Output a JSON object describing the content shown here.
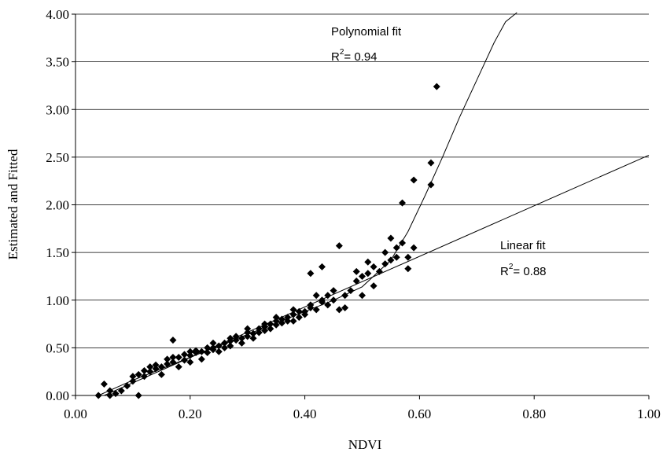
{
  "chart_data": {
    "type": "scatter",
    "xlabel": "NDVI",
    "ylabel": "Estimated and Fitted",
    "xlim": [
      0.0,
      1.0
    ],
    "ylim": [
      0.0,
      4.0
    ],
    "x_ticks": [
      "0.00",
      "0.20",
      "0.40",
      "0.60",
      "0.80",
      "1.00"
    ],
    "y_ticks": [
      "0.00",
      "0.50",
      "1.00",
      "1.50",
      "2.00",
      "2.50",
      "3.00",
      "3.50",
      "4.00"
    ],
    "grid": "horizontal",
    "marker": "diamond",
    "marker_color": "#000000",
    "points": [
      [
        0.04,
        0.0
      ],
      [
        0.05,
        0.12
      ],
      [
        0.06,
        0.0
      ],
      [
        0.06,
        0.05
      ],
      [
        0.07,
        0.02
      ],
      [
        0.08,
        0.05
      ],
      [
        0.09,
        0.1
      ],
      [
        0.1,
        0.15
      ],
      [
        0.11,
        0.0
      ],
      [
        0.11,
        0.22
      ],
      [
        0.12,
        0.2
      ],
      [
        0.12,
        0.26
      ],
      [
        0.13,
        0.25
      ],
      [
        0.13,
        0.3
      ],
      [
        0.14,
        0.28
      ],
      [
        0.15,
        0.3
      ],
      [
        0.15,
        0.22
      ],
      [
        0.16,
        0.33
      ],
      [
        0.16,
        0.38
      ],
      [
        0.17,
        0.58
      ],
      [
        0.17,
        0.35
      ],
      [
        0.18,
        0.4
      ],
      [
        0.18,
        0.3
      ],
      [
        0.19,
        0.37
      ],
      [
        0.19,
        0.43
      ],
      [
        0.2,
        0.42
      ],
      [
        0.2,
        0.35
      ],
      [
        0.21,
        0.45
      ],
      [
        0.21,
        0.47
      ],
      [
        0.22,
        0.46
      ],
      [
        0.22,
        0.38
      ],
      [
        0.23,
        0.5
      ],
      [
        0.23,
        0.45
      ],
      [
        0.24,
        0.5
      ],
      [
        0.24,
        0.48
      ],
      [
        0.25,
        0.52
      ],
      [
        0.25,
        0.46
      ],
      [
        0.26,
        0.55
      ],
      [
        0.26,
        0.5
      ],
      [
        0.27,
        0.57
      ],
      [
        0.27,
        0.52
      ],
      [
        0.28,
        0.58
      ],
      [
        0.28,
        0.62
      ],
      [
        0.29,
        0.6
      ],
      [
        0.29,
        0.55
      ],
      [
        0.3,
        0.62
      ],
      [
        0.3,
        0.66
      ],
      [
        0.31,
        0.65
      ],
      [
        0.31,
        0.6
      ],
      [
        0.32,
        0.7
      ],
      [
        0.32,
        0.66
      ],
      [
        0.33,
        0.72
      ],
      [
        0.33,
        0.68
      ],
      [
        0.34,
        0.75
      ],
      [
        0.34,
        0.7
      ],
      [
        0.35,
        0.78
      ],
      [
        0.35,
        0.74
      ],
      [
        0.36,
        0.8
      ],
      [
        0.36,
        0.76
      ],
      [
        0.37,
        0.82
      ],
      [
        0.37,
        0.78
      ],
      [
        0.38,
        0.85
      ],
      [
        0.38,
        0.78
      ],
      [
        0.39,
        0.88
      ],
      [
        0.39,
        0.82
      ],
      [
        0.4,
        0.88
      ],
      [
        0.4,
        0.85
      ],
      [
        0.41,
        0.92
      ],
      [
        0.41,
        0.95
      ],
      [
        0.42,
        1.05
      ],
      [
        0.42,
        0.9
      ],
      [
        0.43,
        0.98
      ],
      [
        0.43,
        1.0
      ],
      [
        0.44,
        1.05
      ],
      [
        0.44,
        0.95
      ],
      [
        0.45,
        1.1
      ],
      [
        0.45,
        1.0
      ],
      [
        0.46,
        1.57
      ],
      [
        0.46,
        0.9
      ],
      [
        0.47,
        0.92
      ],
      [
        0.47,
        1.05
      ],
      [
        0.48,
        1.1
      ],
      [
        0.49,
        1.3
      ],
      [
        0.49,
        1.2
      ],
      [
        0.5,
        1.25
      ],
      [
        0.5,
        1.05
      ],
      [
        0.51,
        1.28
      ],
      [
        0.51,
        1.4
      ],
      [
        0.52,
        1.35
      ],
      [
        0.52,
        1.15
      ],
      [
        0.53,
        1.3
      ],
      [
        0.54,
        1.5
      ],
      [
        0.54,
        1.38
      ],
      [
        0.55,
        1.65
      ],
      [
        0.55,
        1.42
      ],
      [
        0.56,
        1.55
      ],
      [
        0.56,
        1.45
      ],
      [
        0.57,
        1.6
      ],
      [
        0.57,
        2.02
      ],
      [
        0.58,
        1.33
      ],
      [
        0.58,
        1.45
      ],
      [
        0.59,
        1.55
      ],
      [
        0.59,
        2.26
      ],
      [
        0.62,
        2.21
      ],
      [
        0.62,
        2.44
      ],
      [
        0.63,
        3.24
      ],
      [
        0.43,
        1.35
      ],
      [
        0.41,
        1.28
      ],
      [
        0.38,
        0.9
      ],
      [
        0.35,
        0.82
      ],
      [
        0.33,
        0.75
      ],
      [
        0.3,
        0.7
      ],
      [
        0.27,
        0.6
      ],
      [
        0.24,
        0.55
      ],
      [
        0.2,
        0.46
      ],
      [
        0.17,
        0.4
      ],
      [
        0.14,
        0.32
      ],
      [
        0.1,
        0.2
      ]
    ],
    "fits": [
      {
        "name": "Polynomial fit",
        "label": "Polynomial fit",
        "r2_prefix": "R",
        "r2_sup": "2",
        "r2_value": "= 0.94",
        "x": [
          0.04,
          0.1,
          0.15,
          0.2,
          0.25,
          0.3,
          0.35,
          0.4,
          0.45,
          0.5,
          0.55,
          0.58,
          0.61,
          0.64,
          0.67,
          0.7,
          0.73,
          0.75,
          0.77
        ],
        "y": [
          0.0,
          0.16,
          0.28,
          0.4,
          0.52,
          0.64,
          0.76,
          0.88,
          1.0,
          1.14,
          1.42,
          1.72,
          2.1,
          2.5,
          2.92,
          3.31,
          3.7,
          3.92,
          4.05
        ]
      },
      {
        "name": "Linear fit",
        "label": "Linear fit",
        "r2_prefix": "R",
        "r2_sup": "2",
        "r2_value": "= 0.88",
        "x": [
          0.05,
          1.0
        ],
        "y": [
          0.0,
          2.52
        ]
      }
    ]
  }
}
